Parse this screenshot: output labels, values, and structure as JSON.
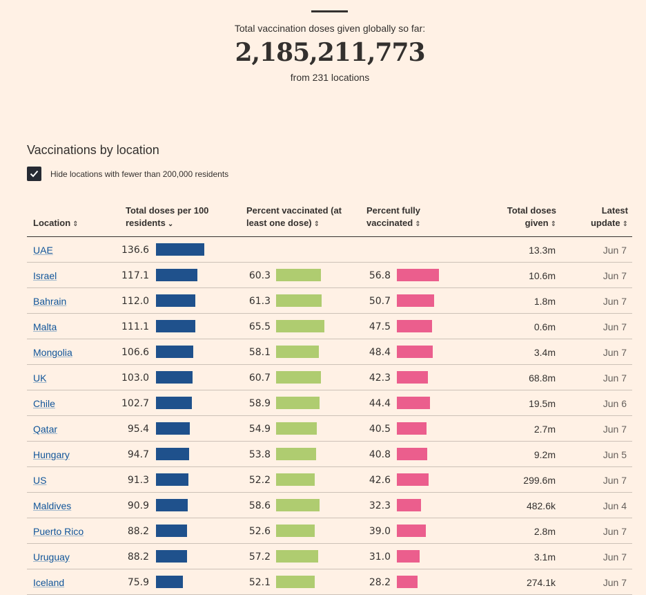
{
  "headline": {
    "label": "Total vaccination doses given globally so far:",
    "total": "2,185,211,773",
    "sub": "from 231 locations"
  },
  "section": {
    "title": "Vaccinations by location",
    "filter_label": "Hide locations with fewer than 200,000 residents",
    "filter_checked": true
  },
  "table": {
    "headers": {
      "location": "Location",
      "doses": "Total doses per 100 residents",
      "vaccinated": "Percent vaccinated (at least one dose)",
      "full": "Percent fully vaccinated",
      "total": "Total doses given",
      "update": "Latest update"
    },
    "sort_active_column": "doses",
    "rows": [
      {
        "location": "UAE",
        "doses": "136.6",
        "vaccinated": "",
        "full": "",
        "total": "13.3m",
        "update": "Jun 7"
      },
      {
        "location": "Israel",
        "doses": "117.1",
        "vaccinated": "60.3",
        "full": "56.8",
        "total": "10.6m",
        "update": "Jun 7"
      },
      {
        "location": "Bahrain",
        "doses": "112.0",
        "vaccinated": "61.3",
        "full": "50.7",
        "total": "1.8m",
        "update": "Jun 7"
      },
      {
        "location": "Malta",
        "doses": "111.1",
        "vaccinated": "65.5",
        "full": "47.5",
        "total": "0.6m",
        "update": "Jun 7"
      },
      {
        "location": "Mongolia",
        "doses": "106.6",
        "vaccinated": "58.1",
        "full": "48.4",
        "total": "3.4m",
        "update": "Jun 7"
      },
      {
        "location": "UK",
        "doses": "103.0",
        "vaccinated": "60.7",
        "full": "42.3",
        "total": "68.8m",
        "update": "Jun 7"
      },
      {
        "location": "Chile",
        "doses": "102.7",
        "vaccinated": "58.9",
        "full": "44.4",
        "total": "19.5m",
        "update": "Jun 6"
      },
      {
        "location": "Qatar",
        "doses": "95.4",
        "vaccinated": "54.9",
        "full": "40.5",
        "total": "2.7m",
        "update": "Jun 7"
      },
      {
        "location": "Hungary",
        "doses": "94.7",
        "vaccinated": "53.8",
        "full": "40.8",
        "total": "9.2m",
        "update": "Jun 5"
      },
      {
        "location": "US",
        "doses": "91.3",
        "vaccinated": "52.2",
        "full": "42.6",
        "total": "299.6m",
        "update": "Jun 7"
      },
      {
        "location": "Maldives",
        "doses": "90.9",
        "vaccinated": "58.6",
        "full": "32.3",
        "total": "482.6k",
        "update": "Jun 4"
      },
      {
        "location": "Puerto Rico",
        "doses": "88.2",
        "vaccinated": "52.6",
        "full": "39.0",
        "total": "2.8m",
        "update": "Jun 7"
      },
      {
        "location": "Uruguay",
        "doses": "88.2",
        "vaccinated": "57.2",
        "full": "31.0",
        "total": "3.1m",
        "update": "Jun 7"
      },
      {
        "location": "Iceland",
        "doses": "75.9",
        "vaccinated": "52.1",
        "full": "28.2",
        "total": "274.1k",
        "update": "Jun 7"
      }
    ]
  },
  "colors": {
    "background": "#fff1e5",
    "doses_bar": "#1f518c",
    "vaccinated_bar": "#afcc70",
    "full_bar": "#eb5e8d",
    "link": "#0f5499"
  },
  "icons": {
    "checkbox": "check-icon",
    "sort": "sort-arrows-icon",
    "sort_active": "chevron-down-icon"
  }
}
